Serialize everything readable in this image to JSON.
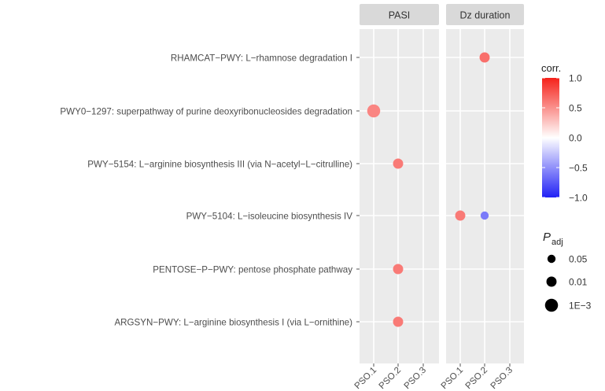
{
  "chart_data": {
    "type": "scatter",
    "subtype": "dot-plot-faceted",
    "facets": [
      "PASI",
      "Dz duration"
    ],
    "x_categories": [
      "PSO.1",
      "PSO.2",
      "PSO.3"
    ],
    "y_categories": [
      "RHAMCAT−PWY: L−rhamnose degradation I",
      "PWY0−1297: superpathway of purine deoxyribonucleosides degradation",
      "PWY−5154: L−arginine biosynthesis III (via N−acetyl−L−citrulline)",
      "PWY−5104: L−isoleucine biosynthesis IV",
      "PENTOSE−P−PWY: pentose phosphate pathway",
      "ARGSYN−PWY: L−arginine biosynthesis I (via L−ornithine)"
    ],
    "points": [
      {
        "facet": "PASI",
        "x": "PSO.1",
        "y": 1,
        "corr": 0.55,
        "padj": 0.001
      },
      {
        "facet": "PASI",
        "x": "PSO.2",
        "y": 2,
        "corr": 0.6,
        "padj": 0.01
      },
      {
        "facet": "PASI",
        "x": "PSO.2",
        "y": 4,
        "corr": 0.6,
        "padj": 0.01
      },
      {
        "facet": "PASI",
        "x": "PSO.2",
        "y": 5,
        "corr": 0.6,
        "padj": 0.01
      },
      {
        "facet": "Dz duration",
        "x": "PSO.2",
        "y": 0,
        "corr": 0.65,
        "padj": 0.01
      },
      {
        "facet": "Dz duration",
        "x": "PSO.1",
        "y": 3,
        "corr": 0.6,
        "padj": 0.01
      },
      {
        "facet": "Dz duration",
        "x": "PSO.2",
        "y": 3,
        "corr": -0.6,
        "padj": 0.05
      }
    ],
    "color_legend": {
      "title": "corr.",
      "ticks": [
        "1.0",
        "0.5",
        "0.0",
        "−0.5",
        "−1.0"
      ],
      "tick_values": [
        1.0,
        0.5,
        0.0,
        -0.5,
        -1.0
      ],
      "range": [
        -1.0,
        1.0
      ],
      "colors": {
        "low": "#2121f5",
        "mid": "#ffffff",
        "high": "#f5221b"
      }
    },
    "size_legend": {
      "title": "P",
      "title_subscript": "adj",
      "labels": [
        "0.05",
        "0.01",
        "1E−3"
      ],
      "values": [
        0.05,
        0.01,
        0.001
      ]
    },
    "panel_color": "#ebebeb",
    "strip_color": "#d9d9d9",
    "grid_color": "#ffffff"
  }
}
